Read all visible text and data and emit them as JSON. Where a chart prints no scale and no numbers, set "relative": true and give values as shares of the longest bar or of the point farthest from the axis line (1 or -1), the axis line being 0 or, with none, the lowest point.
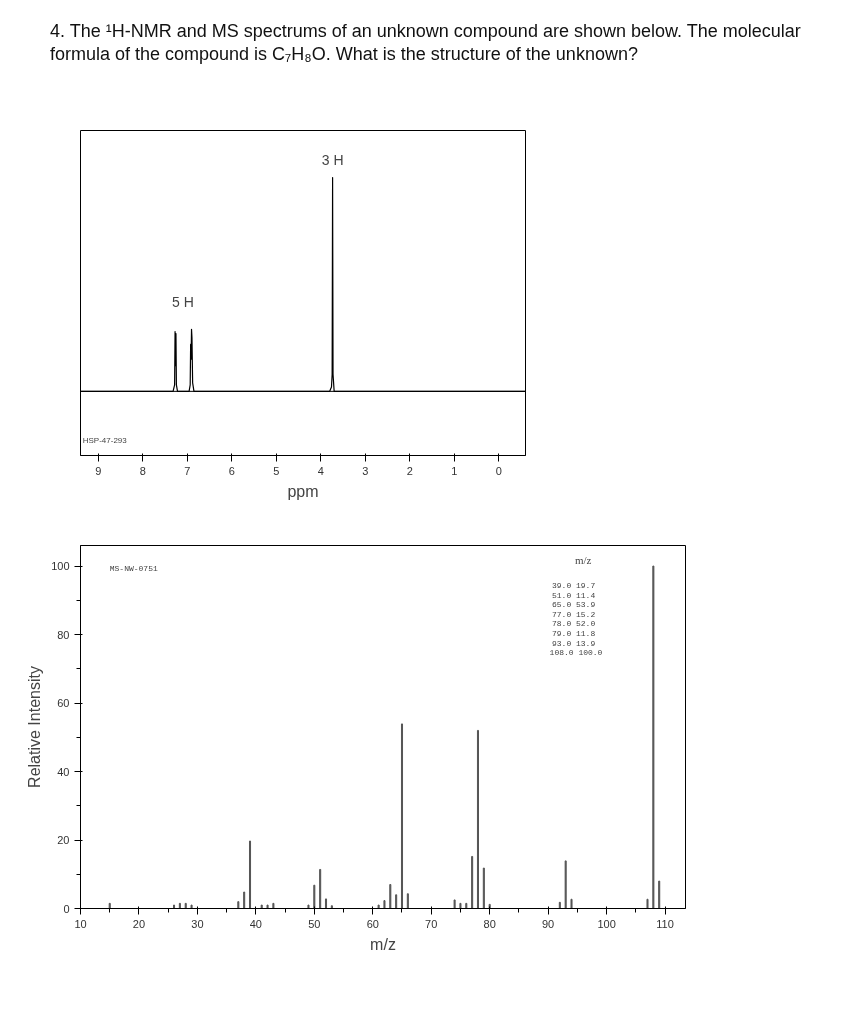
{
  "chart_data": [
    {
      "type": "line",
      "title": "4. The ¹H-NMR and MS spectrums of an unknown compound are shown below. The molecular formula of the compound is C₇H₈O. What is the structure of the unknown?",
      "xlabel": "ppm",
      "relative": true,
      "grid": false,
      "xlim": [
        9.4,
        -0.6
      ],
      "xticks": [
        9,
        8,
        7,
        6,
        5,
        4,
        3,
        2,
        1,
        0
      ],
      "series": [
        {
          "color": "#000000",
          "x": [
            9.4,
            7.32,
            7.285,
            7.275,
            7.265,
            7.255,
            7.245,
            7.22,
            6.96,
            6.935,
            6.925,
            6.915,
            6.905,
            6.895,
            6.88,
            6.85,
            3.8,
            3.76,
            3.745,
            3.735,
            3.725,
            3.7,
            -0.6
          ],
          "values": [
            0,
            0,
            0.03,
            0.28,
            0.12,
            0.27,
            0.03,
            0,
            0,
            0.03,
            0.22,
            0.15,
            0.29,
            0.25,
            0.04,
            0,
            0,
            0.02,
            0.08,
            1.0,
            0.08,
            0,
            0
          ]
        }
      ],
      "annotations": [
        "5 H",
        {
          "text": "3 H",
          "x": 3.735,
          "y": 1.0
        },
        "HSP-47-293"
      ]
    },
    {
      "type": "bar",
      "xlabel": "m/z",
      "ylabel": "Relative Intensity",
      "grid": false,
      "xlim": [
        10,
        113.5
      ],
      "ylim": [
        0,
        106
      ],
      "xticks": [
        10,
        {
          "value": 15,
          "label": null
        },
        20,
        {
          "value": 25,
          "label": null
        },
        30,
        {
          "value": 35,
          "label": null
        },
        40,
        {
          "value": 45,
          "label": null
        },
        50,
        {
          "value": 55,
          "label": null
        },
        60,
        {
          "value": 65,
          "label": null
        },
        70,
        {
          "value": 75,
          "label": null
        },
        80,
        {
          "value": 85,
          "label": null
        },
        90,
        {
          "value": 95,
          "label": null
        },
        100,
        {
          "value": 105,
          "label": null
        },
        110
      ],
      "yticks": [
        0,
        {
          "value": 10,
          "label": null
        },
        20,
        {
          "value": 30,
          "label": null
        },
        40,
        {
          "value": 50,
          "label": null
        },
        60,
        {
          "value": 70,
          "label": null
        },
        80,
        {
          "value": 90,
          "label": null
        },
        100
      ],
      "x": [
        15,
        26,
        27,
        28,
        29,
        37,
        38,
        39,
        41,
        42,
        43,
        49,
        50,
        51,
        52,
        53,
        61,
        62,
        63,
        64,
        65,
        66,
        74,
        75,
        76,
        77,
        78,
        79,
        80,
        92,
        93,
        94,
        107,
        108,
        109
      ],
      "series": [
        {
          "color": "#555555",
          "values": [
            1.5,
            1,
            1.5,
            1.5,
            1,
            2,
            4.8,
            19.7,
            1,
            1,
            1.5,
            1,
            6.8,
            11.4,
            2.8,
            0.8,
            1,
            2.3,
            7.0,
            4.0,
            53.9,
            4.3,
            2.5,
            1.5,
            1.5,
            15.2,
            52.0,
            11.8,
            1.2,
            1.8,
            13.9,
            2.7,
            2.7,
            100.0,
            8.0
          ]
        }
      ],
      "annotations": [
        "MS-NW-0751",
        "m/z",
        "39.0     19.7",
        "51.0     11.4",
        "65.0     53.9",
        "77.0     15.2",
        "78.0     52.0",
        "79.0     11.8",
        "93.0     13.9",
        "108.0    100.0"
      ]
    }
  ]
}
